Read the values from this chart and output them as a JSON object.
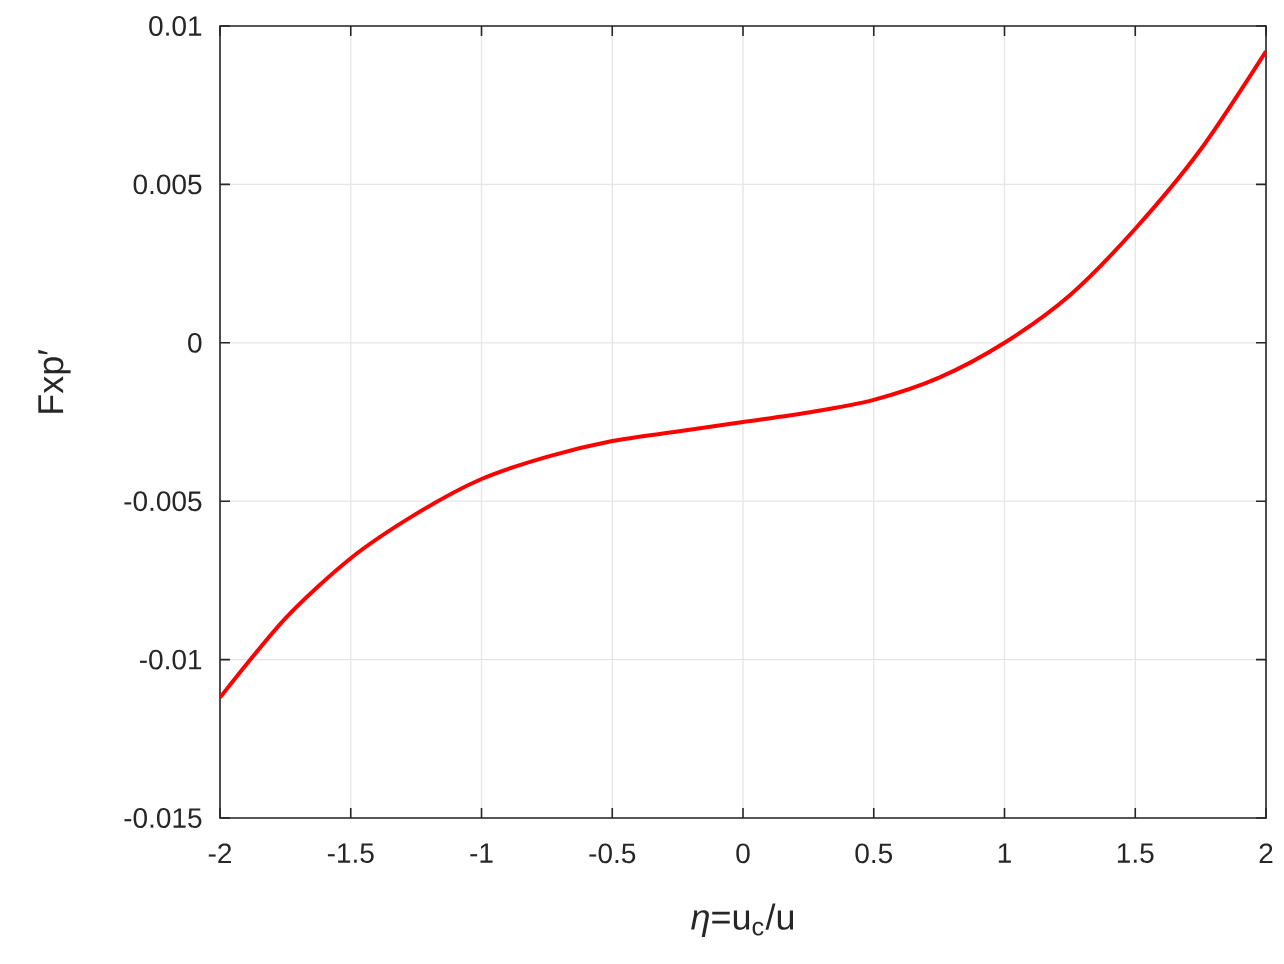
{
  "chart_data": {
    "type": "line",
    "xlabel": "*η*=u$_{c}$/u",
    "ylabel": "Fxp′",
    "x": [
      -2,
      -1.75,
      -1.5,
      -1.25,
      -1,
      -0.75,
      -0.5,
      -0.25,
      0,
      0.25,
      0.5,
      0.75,
      1,
      1.25,
      1.5,
      1.75,
      2
    ],
    "series": [
      {
        "color": "#ff0000",
        "values": [
          -0.0112,
          -0.0087,
          -0.0068,
          -0.0054,
          -0.0043,
          -0.0036,
          -0.0031,
          -0.0028,
          -0.0025,
          -0.0022,
          -0.0018,
          -0.0011,
          0.0,
          0.0015,
          0.0036,
          0.0061,
          0.0092
        ]
      }
    ],
    "xlim": [
      -2,
      2
    ],
    "ylim": [
      -0.015,
      0.01
    ],
    "xticks": [
      -2,
      -1.5,
      -1,
      -0.5,
      0,
      0.5,
      1,
      1.5,
      2
    ],
    "yticks": [
      -0.015,
      -0.01,
      -0.005,
      0,
      0.005,
      0.01
    ],
    "grid": true,
    "line_style": "solid"
  }
}
